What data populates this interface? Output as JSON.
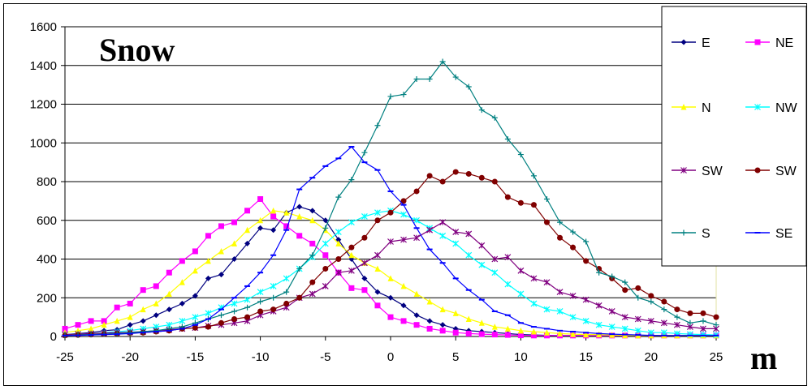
{
  "chart_data": {
    "type": "line",
    "title": "Snow",
    "xlabel": "m",
    "ylabel": "",
    "xlim": [
      -25,
      25
    ],
    "ylim": [
      0,
      1600
    ],
    "xticks": [
      "-25",
      "-20",
      "-15",
      "-10",
      "-5",
      "0",
      "5",
      "10",
      "15",
      "20",
      "25"
    ],
    "yticks": [
      "0",
      "200",
      "400",
      "600",
      "800",
      "1000",
      "1200",
      "1400",
      "1600"
    ],
    "grid": "horizontal",
    "legend_position": "right",
    "x": [
      -25,
      -24,
      -23,
      -22,
      -21,
      -20,
      -19,
      -18,
      -17,
      -16,
      -15,
      -14,
      -13,
      -12,
      -11,
      -10,
      -9,
      -8,
      -7,
      -6,
      -5,
      -4,
      -3,
      -2,
      -1,
      0,
      1,
      2,
      3,
      4,
      5,
      6,
      7,
      8,
      9,
      10,
      11,
      12,
      13,
      14,
      15,
      16,
      17,
      18,
      19,
      20,
      21,
      22,
      23,
      24,
      25
    ],
    "series": [
      {
        "name": "E",
        "color": "#000080",
        "marker": "diamond",
        "values": [
          10,
          15,
          20,
          30,
          35,
          60,
          80,
          110,
          140,
          170,
          210,
          300,
          320,
          400,
          480,
          560,
          550,
          640,
          670,
          650,
          600,
          500,
          400,
          300,
          230,
          200,
          160,
          110,
          80,
          60,
          40,
          30,
          25,
          20,
          15,
          10,
          8,
          6,
          5,
          5,
          5,
          5,
          5,
          5,
          5,
          5,
          5,
          5,
          5,
          5,
          5
        ]
      },
      {
        "name": "NE",
        "color": "#FF00FF",
        "marker": "square",
        "values": [
          40,
          60,
          80,
          80,
          150,
          170,
          240,
          260,
          330,
          390,
          440,
          520,
          570,
          590,
          650,
          710,
          620,
          570,
          520,
          480,
          420,
          330,
          250,
          240,
          160,
          100,
          80,
          60,
          40,
          30,
          20,
          15,
          12,
          10,
          8,
          6,
          5,
          5,
          5,
          5,
          5,
          5,
          5,
          5,
          5,
          5,
          5,
          5,
          5,
          5,
          5
        ]
      },
      {
        "name": "N",
        "color": "#FFFF00",
        "marker": "triangle",
        "values": [
          20,
          30,
          40,
          60,
          80,
          100,
          140,
          170,
          220,
          280,
          340,
          390,
          440,
          480,
          550,
          600,
          650,
          640,
          620,
          600,
          550,
          480,
          420,
          380,
          350,
          300,
          260,
          220,
          180,
          140,
          120,
          90,
          70,
          50,
          40,
          30,
          25,
          20,
          15,
          12,
          10,
          10,
          8,
          6,
          5,
          5,
          5,
          5,
          5,
          5,
          5
        ]
      },
      {
        "name": "NW",
        "color": "#00FFFF",
        "marker": "star",
        "values": [
          10,
          12,
          15,
          20,
          25,
          30,
          40,
          50,
          60,
          80,
          100,
          120,
          150,
          170,
          190,
          230,
          260,
          300,
          350,
          410,
          480,
          540,
          590,
          620,
          640,
          650,
          630,
          600,
          560,
          520,
          480,
          420,
          370,
          330,
          270,
          220,
          170,
          140,
          130,
          100,
          80,
          60,
          50,
          40,
          30,
          20,
          20,
          15,
          12,
          10,
          8
        ]
      },
      {
        "name": "SW",
        "color": "#800080",
        "marker": "star",
        "values": [
          10,
          12,
          15,
          18,
          20,
          22,
          25,
          30,
          35,
          40,
          45,
          55,
          60,
          70,
          80,
          110,
          130,
          150,
          200,
          220,
          260,
          330,
          340,
          380,
          420,
          490,
          500,
          510,
          550,
          590,
          540,
          530,
          470,
          400,
          410,
          340,
          300,
          280,
          230,
          210,
          190,
          160,
          130,
          100,
          90,
          80,
          70,
          60,
          50,
          40,
          40
        ]
      },
      {
        "name": "SW",
        "color": "#800000",
        "marker": "circle",
        "values": [
          5,
          8,
          10,
          12,
          15,
          18,
          20,
          25,
          30,
          40,
          45,
          50,
          70,
          90,
          100,
          130,
          140,
          170,
          200,
          280,
          350,
          400,
          460,
          510,
          600,
          640,
          700,
          750,
          830,
          800,
          850,
          840,
          820,
          800,
          720,
          690,
          680,
          590,
          510,
          460,
          390,
          350,
          300,
          240,
          250,
          210,
          180,
          140,
          120,
          120,
          100
        ]
      },
      {
        "name": "S",
        "color": "#008080",
        "marker": "plus",
        "values": [
          5,
          8,
          10,
          12,
          15,
          20,
          25,
          30,
          40,
          50,
          70,
          90,
          110,
          130,
          150,
          180,
          200,
          230,
          350,
          420,
          560,
          720,
          810,
          950,
          1090,
          1240,
          1250,
          1330,
          1330,
          1420,
          1340,
          1290,
          1170,
          1130,
          1020,
          940,
          830,
          710,
          590,
          540,
          490,
          330,
          310,
          280,
          200,
          180,
          140,
          100,
          70,
          80,
          60
        ]
      },
      {
        "name": "SE",
        "color": "#0000FF",
        "marker": "dash",
        "values": [
          5,
          6,
          8,
          10,
          12,
          15,
          20,
          25,
          30,
          40,
          60,
          90,
          140,
          200,
          260,
          330,
          420,
          550,
          760,
          820,
          880,
          920,
          980,
          900,
          860,
          750,
          680,
          560,
          450,
          380,
          300,
          240,
          190,
          130,
          110,
          70,
          50,
          40,
          30,
          25,
          20,
          15,
          12,
          10,
          8,
          6,
          5,
          5,
          5,
          5,
          5
        ]
      }
    ]
  }
}
